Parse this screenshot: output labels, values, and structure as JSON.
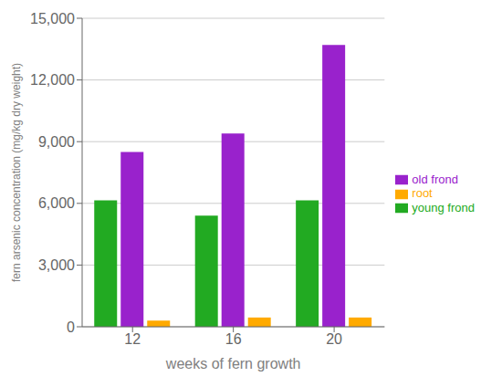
{
  "chart_data": {
    "type": "bar",
    "xlabel": "weeks of fern growth",
    "ylabel": "fern arsenic concentration (mg/kg dry weight)",
    "categories": [
      "12",
      "16",
      "20"
    ],
    "series": [
      {
        "name": "young frond",
        "color": "#22aa22",
        "values": [
          6150,
          5400,
          6150
        ]
      },
      {
        "name": "old frond",
        "color": "#9922cc",
        "values": [
          8500,
          9400,
          13700
        ]
      },
      {
        "name": "root",
        "color": "#ffaa00",
        "values": [
          300,
          450,
          450
        ]
      }
    ],
    "ylim": [
      0,
      15000
    ],
    "yticks": [
      0,
      {
        "value": 3000,
        "label": "3,000"
      },
      {
        "value": 6000,
        "label": "6,000"
      },
      {
        "value": 9000,
        "label": "9,000"
      },
      {
        "value": 12000,
        "label": "12,000"
      },
      {
        "value": 15000,
        "label": "15,000"
      }
    ],
    "grid": true,
    "legend": "right"
  }
}
